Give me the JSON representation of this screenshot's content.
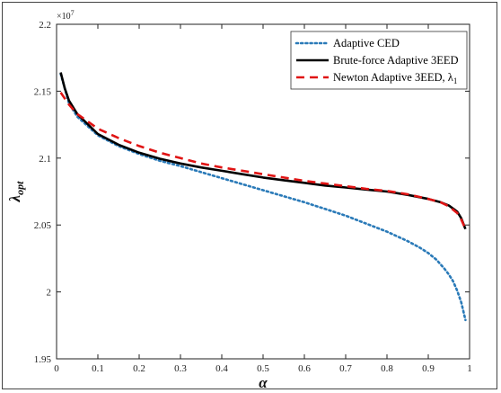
{
  "chart_data": {
    "type": "line",
    "xlabel": "α",
    "ylabel": "λ",
    "ylabel_sub": "opt",
    "y_multiplier": "×10",
    "y_multiplier_exp": "7",
    "xlim": [
      0,
      1
    ],
    "ylim": [
      1.95,
      2.2
    ],
    "xticks": [
      0,
      0.1,
      0.2,
      0.3,
      0.4,
      0.5,
      0.6,
      0.7,
      0.8,
      0.9,
      1
    ],
    "xtick_labels": [
      "0",
      "0.1",
      "0.2",
      "0.3",
      "0.4",
      "0.5",
      "0.6",
      "0.7",
      "0.8",
      "0.9",
      "1"
    ],
    "yticks": [
      1.95,
      2,
      2.05,
      2.1,
      2.15,
      2.2
    ],
    "ytick_labels": [
      "1.95",
      "2",
      "2.05",
      "2.1",
      "2.15",
      "2.2"
    ],
    "grid": false,
    "legend_position": "top-right",
    "series": [
      {
        "name": "Adaptive CED",
        "style": "dotted",
        "color": "#2a7ab8",
        "x": [
          0.01,
          0.03,
          0.05,
          0.1,
          0.15,
          0.2,
          0.25,
          0.3,
          0.35,
          0.4,
          0.45,
          0.5,
          0.55,
          0.6,
          0.65,
          0.7,
          0.75,
          0.8,
          0.85,
          0.88,
          0.9,
          0.92,
          0.94,
          0.95,
          0.96,
          0.97,
          0.98,
          0.99
        ],
        "y": [
          2.163,
          2.141,
          2.131,
          2.117,
          2.109,
          2.103,
          2.098,
          2.094,
          2.0895,
          2.085,
          2.0805,
          2.076,
          2.0715,
          2.067,
          2.062,
          2.057,
          2.051,
          2.045,
          2.038,
          2.033,
          2.029,
          2.024,
          2.017,
          2.013,
          2.008,
          2.001,
          1.992,
          1.979
        ]
      },
      {
        "name": "Brute-force Adaptive 3EED",
        "style": "solid",
        "color": "#000000",
        "x": [
          0.01,
          0.02,
          0.03,
          0.05,
          0.1,
          0.15,
          0.2,
          0.25,
          0.3,
          0.35,
          0.4,
          0.45,
          0.5,
          0.55,
          0.6,
          0.65,
          0.7,
          0.75,
          0.8,
          0.85,
          0.9,
          0.93,
          0.95,
          0.97,
          0.98,
          0.99
        ],
        "y": [
          2.164,
          2.152,
          2.143,
          2.133,
          2.118,
          2.11,
          2.104,
          2.0995,
          2.096,
          2.093,
          2.0905,
          2.088,
          2.0855,
          2.0835,
          2.0815,
          2.0795,
          2.078,
          2.0765,
          2.075,
          2.0725,
          2.0695,
          2.067,
          2.0645,
          2.06,
          2.055,
          2.047
        ]
      },
      {
        "name": "Newton Adaptive 3EED, λ",
        "name_sub": "1",
        "style": "dashed",
        "color": "#e01414",
        "x": [
          0.01,
          0.03,
          0.05,
          0.1,
          0.15,
          0.2,
          0.25,
          0.3,
          0.35,
          0.4,
          0.45,
          0.5,
          0.55,
          0.6,
          0.65,
          0.7,
          0.75,
          0.8,
          0.85,
          0.9,
          0.93,
          0.95,
          0.97,
          0.98,
          0.99
        ],
        "y": [
          2.149,
          2.14,
          2.133,
          2.122,
          2.115,
          2.109,
          2.104,
          2.1,
          2.096,
          2.093,
          2.0905,
          2.088,
          2.0855,
          2.083,
          2.081,
          2.079,
          2.077,
          2.0755,
          2.073,
          2.0695,
          2.067,
          2.064,
          2.059,
          2.054,
          2.047
        ]
      }
    ]
  }
}
